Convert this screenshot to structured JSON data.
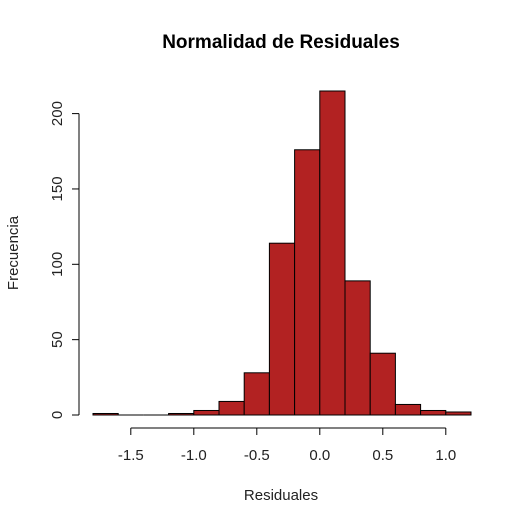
{
  "chart_data": {
    "type": "bar",
    "title": "Normalidad de Residuales",
    "xlabel": "Residuales",
    "ylabel": "Frecuencia",
    "bar_color": "#B22222",
    "bins": [
      {
        "x0": -1.8,
        "x1": -1.6,
        "count": 1
      },
      {
        "x0": -1.6,
        "x1": -1.4,
        "count": 0
      },
      {
        "x0": -1.4,
        "x1": -1.2,
        "count": 0
      },
      {
        "x0": -1.2,
        "x1": -1.0,
        "count": 1
      },
      {
        "x0": -1.0,
        "x1": -0.8,
        "count": 3
      },
      {
        "x0": -0.8,
        "x1": -0.6,
        "count": 9
      },
      {
        "x0": -0.6,
        "x1": -0.4,
        "count": 28
      },
      {
        "x0": -0.4,
        "x1": -0.2,
        "count": 114
      },
      {
        "x0": -0.2,
        "x1": 0.0,
        "count": 176
      },
      {
        "x0": 0.0,
        "x1": 0.2,
        "count": 215
      },
      {
        "x0": 0.2,
        "x1": 0.4,
        "count": 89
      },
      {
        "x0": 0.4,
        "x1": 0.6,
        "count": 41
      },
      {
        "x0": 0.6,
        "x1": 0.8,
        "count": 7
      },
      {
        "x0": 0.8,
        "x1": 1.0,
        "count": 3
      },
      {
        "x0": 1.0,
        "x1": 1.2,
        "count": 2
      }
    ],
    "xlim": [
      -1.8,
      1.2
    ],
    "ylim": [
      0,
      215
    ],
    "x_ticks": [
      "-1.5",
      "-1.0",
      "-0.5",
      "0.0",
      "0.5",
      "1.0"
    ],
    "y_ticks": [
      "0",
      "50",
      "100",
      "150",
      "200"
    ],
    "grid": false,
    "legend": "none"
  }
}
